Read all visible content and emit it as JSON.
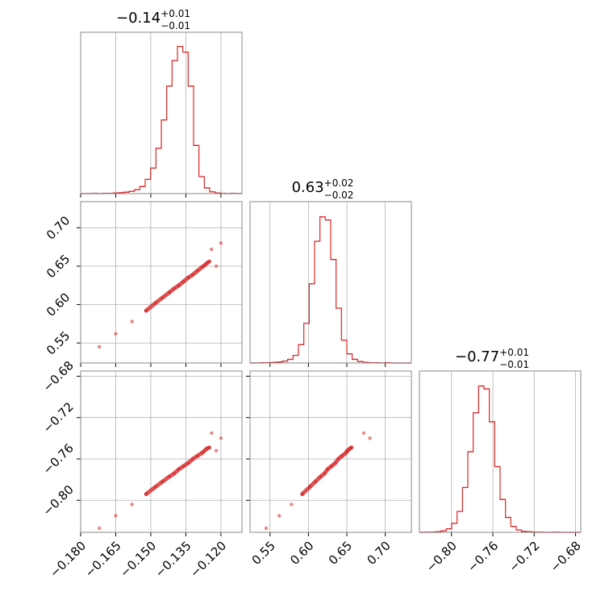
{
  "chart_data": {
    "type": "corner",
    "color": "#d62728",
    "grid": true,
    "params": [
      {
        "title": {
          "value": "−0.14",
          "upper": "+0.01",
          "lower": "−0.01"
        },
        "lim": [
          -0.18,
          -0.111
        ],
        "ticks": [
          {
            "value": -0.18,
            "label": "−0.180"
          },
          {
            "value": -0.165,
            "label": "−0.165"
          },
          {
            "value": -0.15,
            "label": "−0.150"
          },
          {
            "value": -0.135,
            "label": "−0.135"
          },
          {
            "value": -0.12,
            "label": "−0.120"
          }
        ],
        "bins": [
          -0.18,
          -0.1777,
          -0.1754,
          -0.1731,
          -0.1708,
          -0.1685,
          -0.1662,
          -0.1639,
          -0.1616,
          -0.1593,
          -0.157,
          -0.1547,
          -0.1524,
          -0.1501,
          -0.1478,
          -0.1455,
          -0.1432,
          -0.1409,
          -0.1386,
          -0.1363,
          -0.134,
          -0.1317,
          -0.1294,
          -0.1271,
          -0.1248,
          -0.1225,
          -0.1202,
          -0.1179,
          -0.1156,
          -0.1133,
          -0.111
        ],
        "counts": [
          0,
          0,
          1,
          0,
          1,
          1,
          2,
          3,
          5,
          8,
          14,
          25,
          50,
          90,
          160,
          260,
          380,
          470,
          520,
          500,
          380,
          170,
          60,
          20,
          6,
          2,
          1,
          0,
          1,
          0
        ],
        "hist_ylim": [
          0,
          570
        ]
      },
      {
        "title": {
          "value": "0.63",
          "upper": "+0.02",
          "lower": "−0.02"
        },
        "lim": [
          0.524,
          0.734
        ],
        "ticks": [
          {
            "value": 0.55,
            "label": "0.55"
          },
          {
            "value": 0.6,
            "label": "0.60"
          },
          {
            "value": 0.65,
            "label": "0.65"
          },
          {
            "value": 0.7,
            "label": "0.70"
          }
        ],
        "bins": [
          0.524,
          0.531,
          0.538,
          0.545,
          0.552,
          0.559,
          0.566,
          0.573,
          0.58,
          0.587,
          0.594,
          0.601,
          0.608,
          0.615,
          0.622,
          0.629,
          0.636,
          0.643,
          0.65,
          0.657,
          0.664,
          0.671,
          0.678,
          0.685,
          0.692,
          0.699,
          0.706,
          0.713,
          0.72,
          0.727,
          0.734
        ],
        "counts": [
          0,
          0,
          1,
          1,
          2,
          3,
          6,
          12,
          25,
          60,
          130,
          260,
          400,
          480,
          470,
          340,
          180,
          75,
          30,
          12,
          5,
          2,
          1,
          1,
          0,
          1,
          0,
          0,
          0,
          0
        ],
        "hist_ylim": [
          0,
          530
        ]
      },
      {
        "title": {
          "value": "−0.77",
          "upper": "+0.01",
          "lower": "−0.01"
        },
        "lim": [
          -0.831,
          -0.675
        ],
        "ticks": [
          {
            "value": -0.8,
            "label": "−0.80"
          },
          {
            "value": -0.76,
            "label": "−0.76"
          },
          {
            "value": -0.72,
            "label": "−0.72"
          },
          {
            "value": -0.68,
            "label": "−0.68"
          }
        ],
        "bins": [
          -0.831,
          -0.8258,
          -0.8206,
          -0.8154,
          -0.8102,
          -0.805,
          -0.7998,
          -0.7946,
          -0.7894,
          -0.7842,
          -0.779,
          -0.7738,
          -0.7686,
          -0.7634,
          -0.7582,
          -0.753,
          -0.7478,
          -0.7426,
          -0.7374,
          -0.7322,
          -0.727,
          -0.7218,
          -0.7166,
          -0.7114,
          -0.7062,
          -0.701,
          -0.6958,
          -0.6906,
          -0.6854,
          -0.6802,
          -0.675
        ],
        "counts": [
          0,
          1,
          1,
          2,
          5,
          12,
          30,
          70,
          150,
          270,
          400,
          490,
          480,
          370,
          220,
          110,
          50,
          20,
          8,
          3,
          2,
          1,
          1,
          0,
          0,
          1,
          0,
          0,
          0,
          0
        ],
        "hist_ylim": [
          0,
          540
        ]
      }
    ],
    "samples": [
      [
        -0.172,
        -0.165,
        -0.158,
        -0.152,
        -0.148,
        -0.145,
        -0.142,
        -0.14,
        -0.138,
        -0.136,
        -0.134,
        -0.132,
        -0.13,
        -0.128,
        -0.127,
        -0.126,
        -0.125,
        -0.124,
        -0.122,
        -0.12
      ],
      [
        0.545,
        0.562,
        0.578,
        0.592,
        0.602,
        0.609,
        0.616,
        0.621,
        0.625,
        0.63,
        0.635,
        0.639,
        0.644,
        0.649,
        0.651,
        0.654,
        0.656,
        0.672,
        0.65,
        0.68
      ],
      [
        -0.827,
        -0.815,
        -0.804,
        -0.794,
        -0.787,
        -0.782,
        -0.777,
        -0.774,
        -0.77,
        -0.767,
        -0.764,
        -0.76,
        -0.757,
        -0.754,
        -0.752,
        -0.75,
        -0.749,
        -0.735,
        -0.752,
        -0.74
      ]
    ]
  }
}
